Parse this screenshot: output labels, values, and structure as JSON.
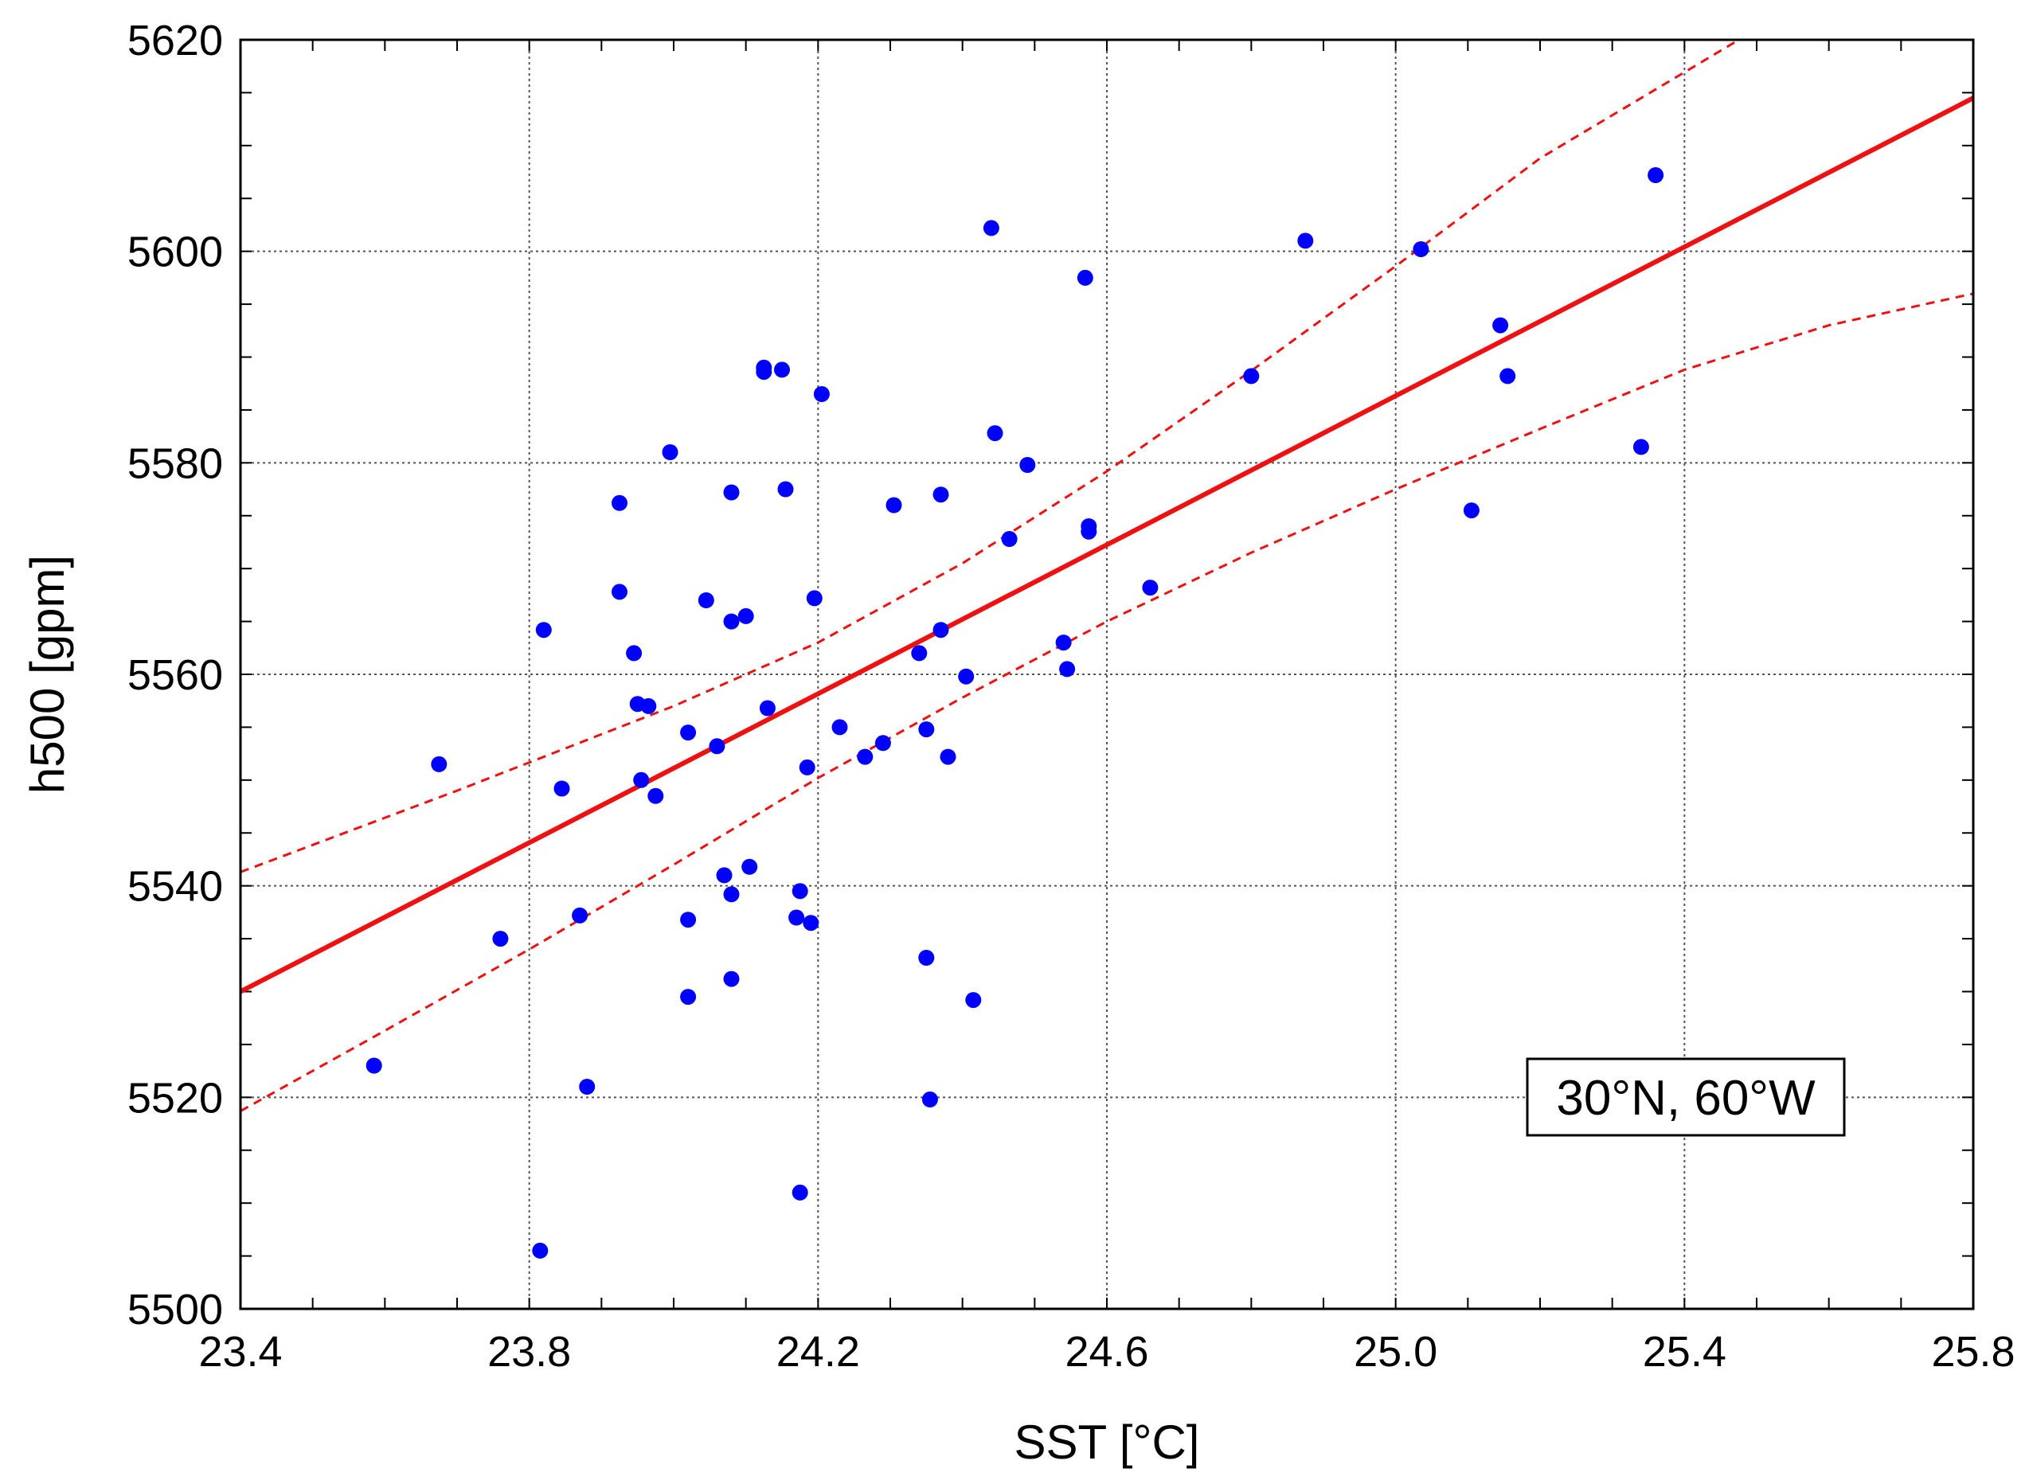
{
  "chart_data": {
    "type": "scatter",
    "title": "",
    "xlabel": "SST [°C]",
    "ylabel": "h500 [gpm]",
    "xlim": [
      23.4,
      25.8
    ],
    "ylim": [
      5500,
      5620
    ],
    "xticks": [
      23.4,
      23.8,
      24.2,
      24.6,
      25.0,
      25.4,
      25.8
    ],
    "xtick_labels": [
      "23.4",
      "23.8",
      "24.2",
      "24.6",
      "25.0",
      "25.4",
      "25.8"
    ],
    "yticks": [
      5500,
      5520,
      5540,
      5560,
      5580,
      5600,
      5620
    ],
    "ytick_labels": [
      "5500",
      "5520",
      "5540",
      "5560",
      "5580",
      "5600",
      "5620"
    ],
    "grid": true,
    "annotation": "30°N, 60°W",
    "point_color": "#0000ff",
    "fit_color": "#ee1111",
    "points": [
      [
        23.585,
        5523.0
      ],
      [
        23.675,
        5551.5
      ],
      [
        23.76,
        5535.0
      ],
      [
        23.815,
        5505.5
      ],
      [
        23.82,
        5564.2
      ],
      [
        23.845,
        5549.2
      ],
      [
        23.87,
        5537.2
      ],
      [
        23.88,
        5521.0
      ],
      [
        23.925,
        5576.2
      ],
      [
        23.925,
        5567.8
      ],
      [
        23.945,
        5562.0
      ],
      [
        23.95,
        5557.2
      ],
      [
        23.955,
        5550.0
      ],
      [
        23.965,
        5557.0
      ],
      [
        23.975,
        5548.5
      ],
      [
        23.995,
        5581.0
      ],
      [
        24.02,
        5554.5
      ],
      [
        24.02,
        5536.8
      ],
      [
        24.02,
        5529.5
      ],
      [
        24.045,
        5567.0
      ],
      [
        24.06,
        5553.2
      ],
      [
        24.07,
        5541.0
      ],
      [
        24.08,
        5577.2
      ],
      [
        24.08,
        5565.0
      ],
      [
        24.08,
        5539.2
      ],
      [
        24.08,
        5531.2
      ],
      [
        24.1,
        5565.5
      ],
      [
        24.105,
        5541.8
      ],
      [
        24.125,
        5589.0
      ],
      [
        24.125,
        5588.6
      ],
      [
        24.13,
        5556.8
      ],
      [
        24.15,
        5588.8
      ],
      [
        24.155,
        5577.5
      ],
      [
        24.17,
        5537.0
      ],
      [
        24.175,
        5539.5
      ],
      [
        24.175,
        5511.0
      ],
      [
        24.185,
        5551.2
      ],
      [
        24.19,
        5536.5
      ],
      [
        24.195,
        5567.2
      ],
      [
        24.205,
        5586.5
      ],
      [
        24.23,
        5555.0
      ],
      [
        24.265,
        5552.2
      ],
      [
        24.29,
        5553.5
      ],
      [
        24.305,
        5576.0
      ],
      [
        24.34,
        5562.0
      ],
      [
        24.35,
        5554.8
      ],
      [
        24.35,
        5533.2
      ],
      [
        24.355,
        5519.8
      ],
      [
        24.37,
        5577.0
      ],
      [
        24.37,
        5564.2
      ],
      [
        24.38,
        5552.2
      ],
      [
        24.405,
        5559.8
      ],
      [
        24.415,
        5529.2
      ],
      [
        24.44,
        5602.2
      ],
      [
        24.445,
        5582.8
      ],
      [
        24.465,
        5572.8
      ],
      [
        24.49,
        5579.8
      ],
      [
        24.54,
        5563.0
      ],
      [
        24.545,
        5560.5
      ],
      [
        24.57,
        5597.5
      ],
      [
        24.575,
        5574.0
      ],
      [
        24.575,
        5573.5
      ],
      [
        24.66,
        5568.2
      ],
      [
        24.8,
        5588.2
      ],
      [
        24.875,
        5601.0
      ],
      [
        25.035,
        5600.2
      ],
      [
        25.105,
        5575.5
      ],
      [
        25.145,
        5593.0
      ],
      [
        25.155,
        5588.2
      ],
      [
        25.34,
        5581.5
      ],
      [
        25.36,
        5607.2
      ]
    ],
    "fit_line": [
      [
        23.4,
        5530.0
      ],
      [
        25.8,
        5614.5
      ]
    ],
    "ci_upper": [
      [
        23.4,
        5541.3
      ],
      [
        23.7,
        5549.0
      ],
      [
        24.0,
        5557.0
      ],
      [
        24.2,
        5563.0
      ],
      [
        24.4,
        5570.5
      ],
      [
        24.6,
        5579.2
      ],
      [
        24.8,
        5588.7
      ],
      [
        25.0,
        5598.6
      ],
      [
        25.2,
        5608.8
      ],
      [
        25.5,
        5621.0
      ]
    ],
    "ci_lower": [
      [
        23.4,
        5518.7
      ],
      [
        23.6,
        5526.3
      ],
      [
        23.8,
        5534.0
      ],
      [
        24.0,
        5542.0
      ],
      [
        24.2,
        5550.2
      ],
      [
        24.4,
        5557.8
      ],
      [
        24.6,
        5565.0
      ],
      [
        24.8,
        5571.5
      ],
      [
        25.0,
        5577.5
      ],
      [
        25.2,
        5583.2
      ],
      [
        25.4,
        5588.8
      ],
      [
        25.6,
        5593.0
      ],
      [
        25.8,
        5596.0
      ]
    ]
  }
}
